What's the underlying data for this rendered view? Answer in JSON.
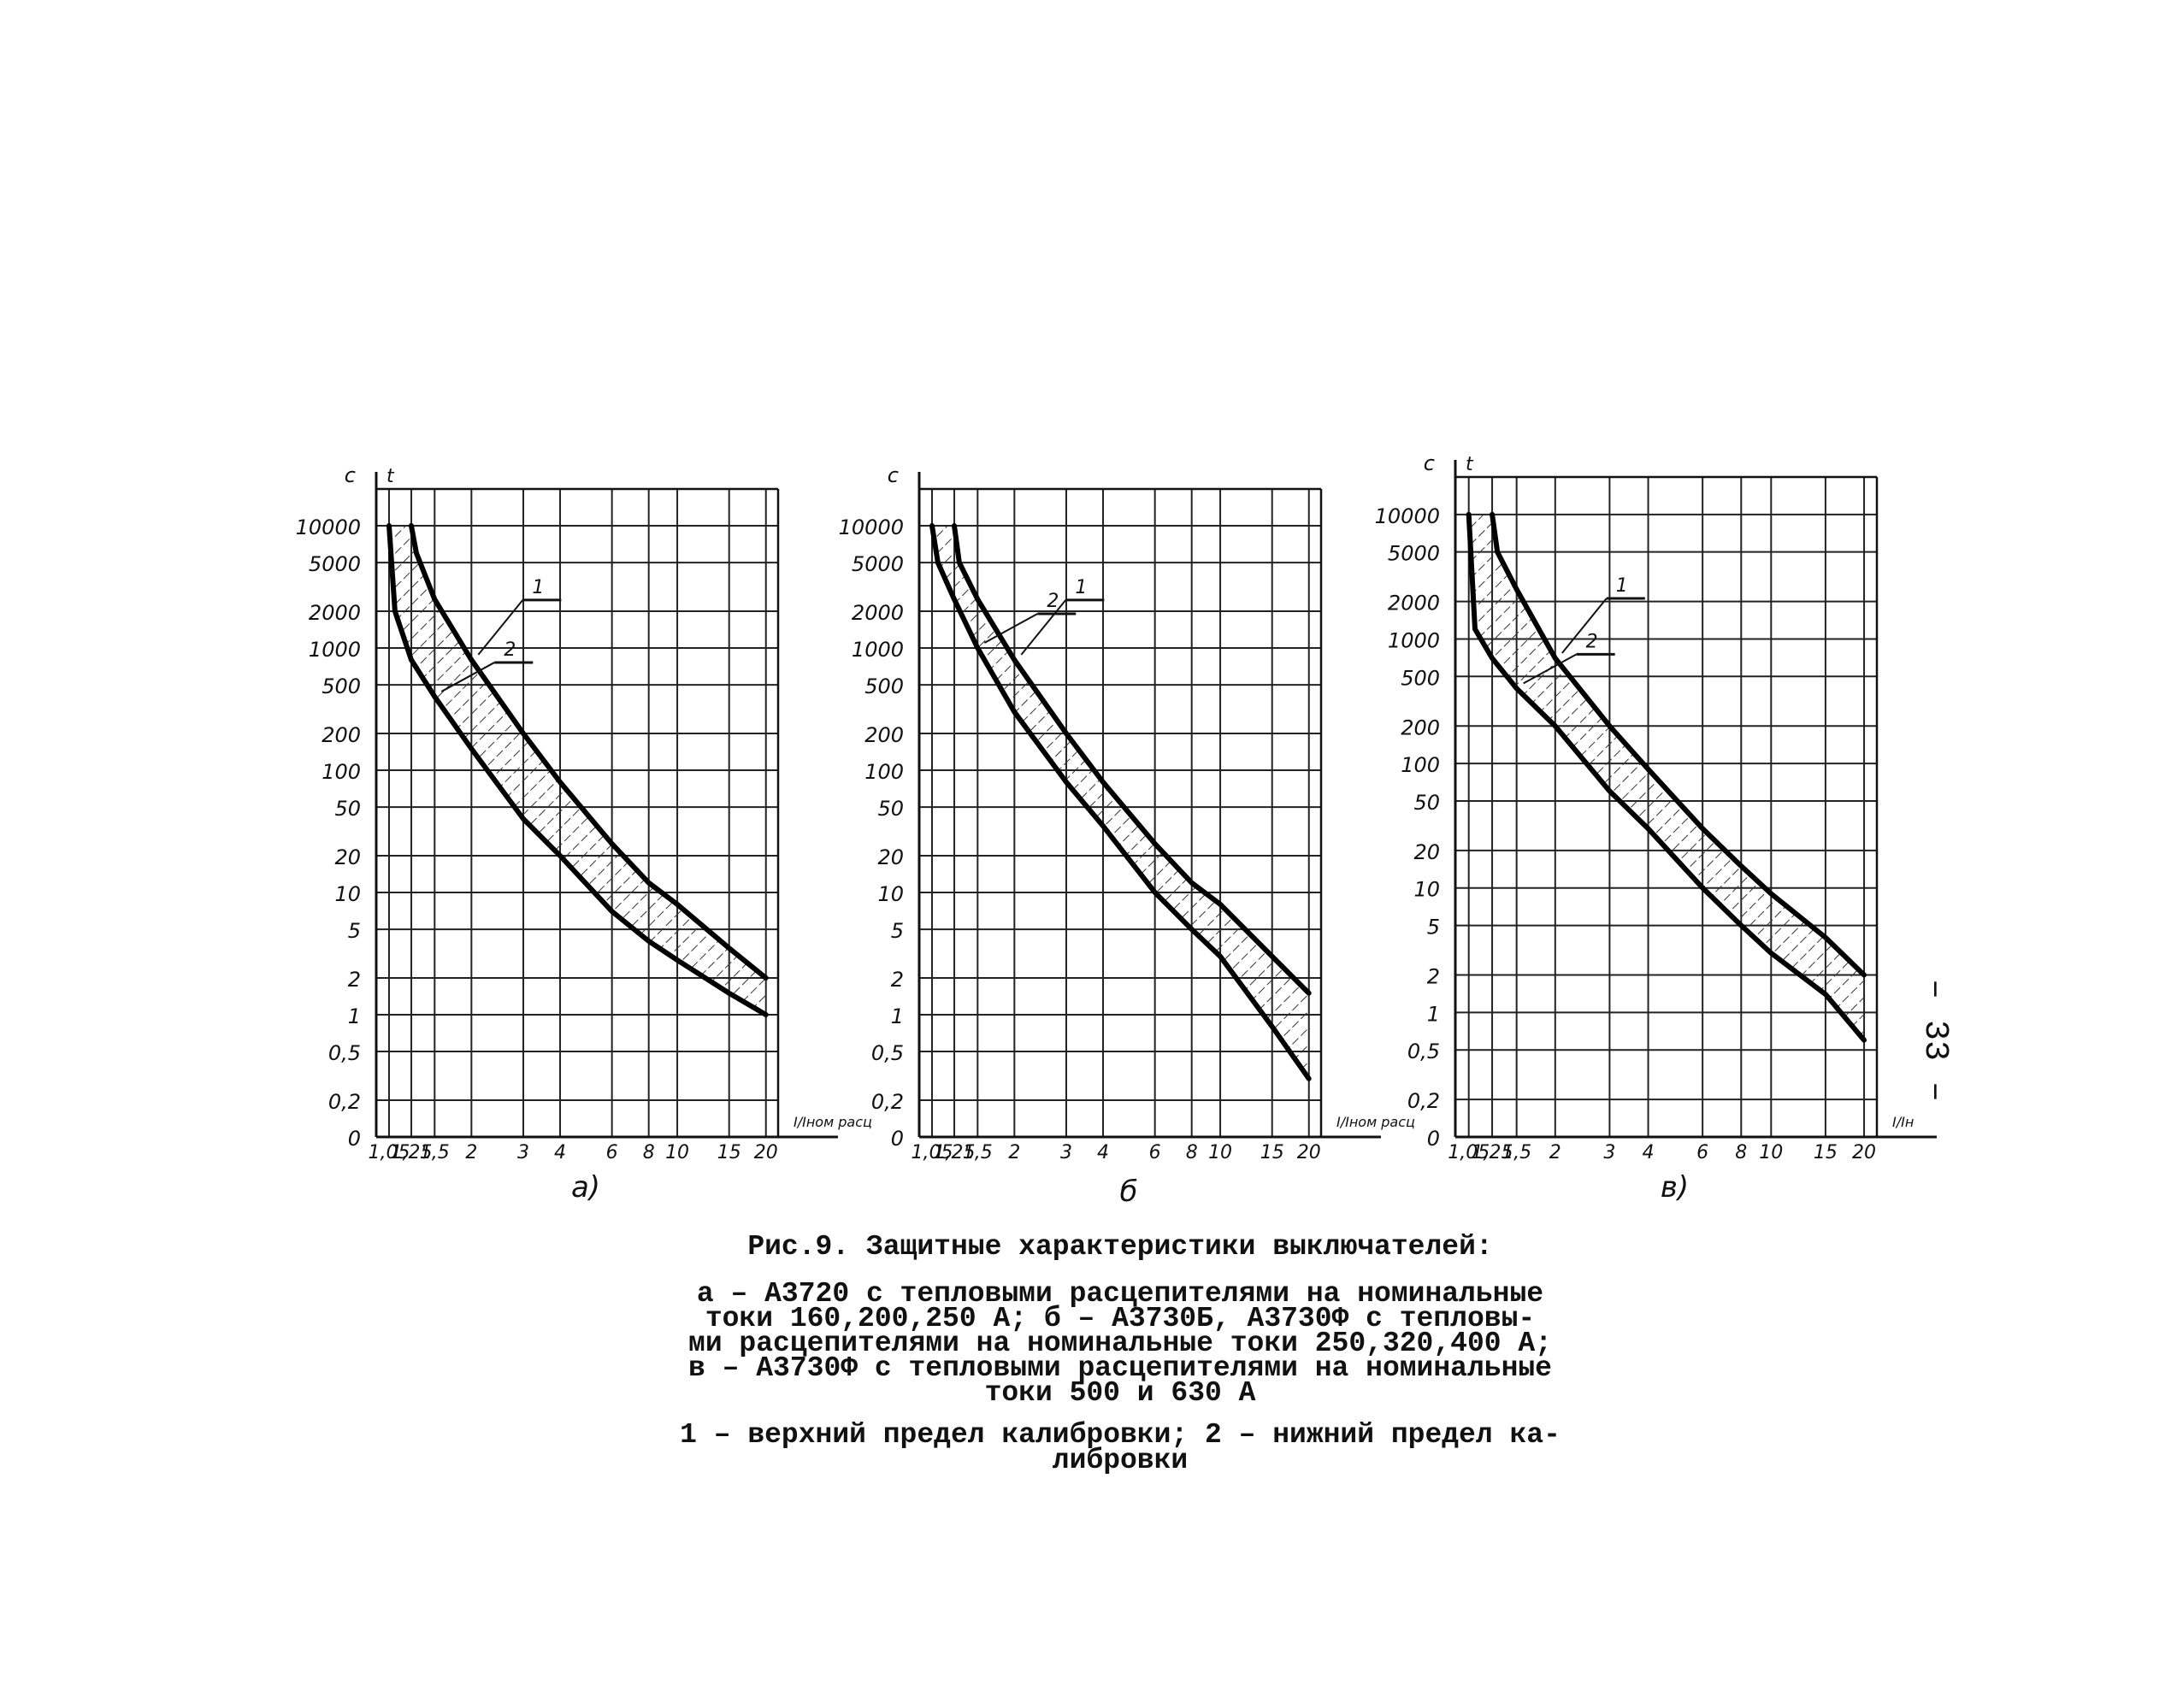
{
  "chart_data": [
    {
      "type": "line",
      "panel_label": "а)",
      "y_unit": "с",
      "y_axis_label": "t",
      "x_axis_label": "I/Iном расц",
      "x_tick_labels": [
        "1,05",
        "1,25",
        "1,5",
        "2",
        "3",
        "4",
        "6",
        "8",
        "10",
        "15",
        "20"
      ],
      "y_tick_labels": [
        "10000",
        "5000",
        "2000",
        "1000",
        "500",
        "200",
        "100",
        "50",
        "20",
        "10",
        "5",
        "2",
        "1",
        "0,5",
        "0,2",
        "0"
      ],
      "x_scale": "log",
      "y_scale": "log",
      "grid": true,
      "shaded_band": true,
      "series": [
        {
          "name": "1",
          "x": [
            1.25,
            1.3,
            1.5,
            2,
            3,
            4,
            6,
            8,
            10,
            15,
            20
          ],
          "y": [
            10000,
            6000,
            2500,
            800,
            200,
            80,
            25,
            12,
            8,
            3.5,
            2
          ]
        },
        {
          "name": "2",
          "x": [
            1.05,
            1.1,
            1.25,
            1.5,
            2,
            3,
            4,
            6,
            8,
            10,
            15,
            20
          ],
          "y": [
            10000,
            2000,
            800,
            400,
            150,
            40,
            20,
            7,
            4,
            2.8,
            1.5,
            1
          ]
        }
      ]
    },
    {
      "type": "line",
      "panel_label": "б",
      "y_unit": "с",
      "y_axis_label": "",
      "x_axis_label": "I/Iном расц",
      "x_tick_labels": [
        "1,05",
        "1,25",
        "1,5",
        "2",
        "3",
        "4",
        "6",
        "8",
        "10",
        "15",
        "20"
      ],
      "y_tick_labels": [
        "10000",
        "5000",
        "2000",
        "1000",
        "500",
        "200",
        "100",
        "50",
        "20",
        "10",
        "5",
        "2",
        "1",
        "0,5",
        "0,2",
        "0"
      ],
      "x_scale": "log",
      "y_scale": "log",
      "grid": true,
      "shaded_band": true,
      "series": [
        {
          "name": "1",
          "x": [
            1.25,
            1.3,
            1.5,
            2,
            3,
            4,
            6,
            8,
            10,
            15,
            20
          ],
          "y": [
            10000,
            5000,
            2500,
            800,
            200,
            80,
            25,
            12,
            8,
            3,
            1.5
          ]
        },
        {
          "name": "2",
          "x": [
            1.05,
            1.1,
            1.25,
            1.5,
            2,
            3,
            4,
            6,
            8,
            10,
            15,
            20
          ],
          "y": [
            10000,
            5000,
            2500,
            1000,
            300,
            80,
            35,
            10,
            5,
            3,
            0.8,
            0.3
          ]
        }
      ]
    },
    {
      "type": "line",
      "panel_label": "в)",
      "y_unit": "с",
      "y_axis_label": "t",
      "x_axis_label": "I/Iн",
      "x_tick_labels": [
        "1,05",
        "1,25",
        "1,5",
        "2",
        "3",
        "4",
        "6",
        "8",
        "10",
        "15",
        "20"
      ],
      "y_tick_labels": [
        "10000",
        "5000",
        "2000",
        "1000",
        "500",
        "200",
        "100",
        "50",
        "20",
        "10",
        "5",
        "2",
        "1",
        "0,5",
        "0,2",
        "0"
      ],
      "x_scale": "log",
      "y_scale": "log",
      "grid": true,
      "shaded_band": true,
      "series": [
        {
          "name": "1",
          "x": [
            1.25,
            1.3,
            1.5,
            2,
            3,
            4,
            6,
            8,
            10,
            15,
            20
          ],
          "y": [
            10000,
            5000,
            2500,
            700,
            200,
            90,
            30,
            15,
            9,
            4,
            2
          ]
        },
        {
          "name": "2",
          "x": [
            1.05,
            1.1,
            1.25,
            1.5,
            2,
            3,
            4,
            6,
            8,
            10,
            15,
            20
          ],
          "y": [
            10000,
            1200,
            700,
            400,
            200,
            60,
            30,
            10,
            5,
            3,
            1.4,
            0.6
          ]
        }
      ]
    }
  ],
  "caption": {
    "title": "Рис.9. Защитные характеристики выключателей:",
    "lines": [
      "а – А3720 с тепловыми расцепителями на номинальные",
      "токи 160,200,250 А; б – А3730Б, А3730Ф с тепловы-",
      "ми расцепителями на номинальные токи 250,320,400 А;",
      "в – А3730Ф с тепловыми расцепителями на номинальные",
      "токи 500 и 630 А"
    ],
    "legend_lines": [
      "1 – верхний предел калибровки; 2 – нижний предел ка-",
      "либровки"
    ]
  },
  "page_number": "– 33 –"
}
